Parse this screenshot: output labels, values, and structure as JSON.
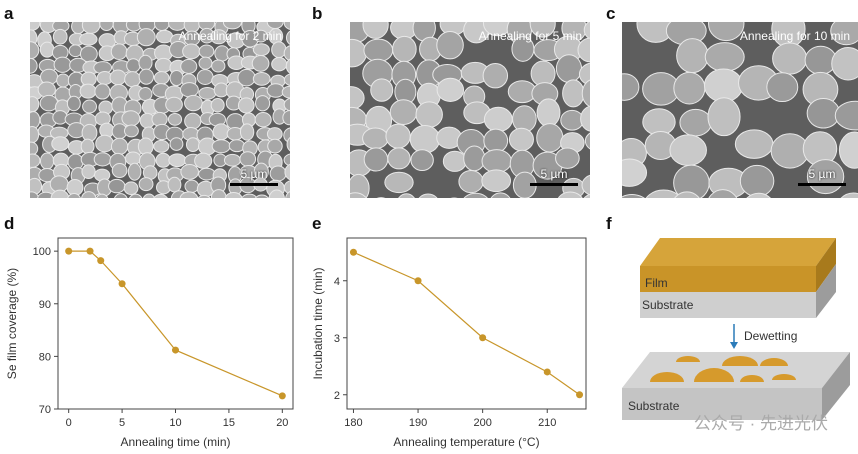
{
  "panels": {
    "a": {
      "label": "a",
      "caption": "Annealing for 2 min",
      "scale_bar": "5 µm"
    },
    "b": {
      "label": "b",
      "caption": "Annealing for 5 min",
      "scale_bar": "5 µm"
    },
    "c": {
      "label": "c",
      "caption": "Annealing for 10 min",
      "scale_bar": "5 µm"
    },
    "d": {
      "label": "d"
    },
    "e": {
      "label": "e"
    },
    "f": {
      "label": "f",
      "film": "Film",
      "substrate_top": "Substrate",
      "arrow_label": "Dewetting",
      "substrate_bottom": "Substrate"
    }
  },
  "watermark": "公众号 · 先进光伏",
  "colors": {
    "series": "#c8962a",
    "film": "#c08a22",
    "substrate": "#c9c9c9"
  },
  "chart_data": [
    {
      "type": "line",
      "title": "",
      "xlabel": "Annealing time (min)",
      "ylabel": "Se film coverage (%)",
      "x": [
        0,
        2,
        3,
        5,
        10,
        20
      ],
      "y": [
        100,
        100,
        98.2,
        93.8,
        81.2,
        72.5
      ],
      "xlim": [
        -1,
        21
      ],
      "ylim": [
        70,
        102.5
      ],
      "xticks": [
        "0",
        "5",
        "10",
        "15",
        "20"
      ],
      "yticks": [
        "70",
        "80",
        "90",
        "100"
      ]
    },
    {
      "type": "line",
      "title": "",
      "xlabel": "Annealing temperature (°C)",
      "ylabel": "Incubation time (min)",
      "x": [
        180,
        190,
        200,
        210,
        215
      ],
      "y": [
        4.5,
        4.0,
        3.0,
        2.4,
        2.0
      ],
      "xlim": [
        179,
        216
      ],
      "ylim": [
        1.75,
        4.75
      ],
      "xticks": [
        "180",
        "190",
        "200",
        "210"
      ],
      "yticks": [
        "2",
        "3",
        "4"
      ]
    }
  ]
}
